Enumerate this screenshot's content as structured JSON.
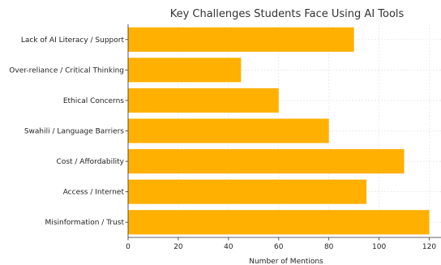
{
  "chart_data": {
    "type": "bar",
    "orientation": "horizontal",
    "title": "Key Challenges Students Face Using AI Tools",
    "xlabel": "Number of Mentions",
    "ylabel": "",
    "categories": [
      "Lack of AI Literacy / Support",
      "Over-reliance / Critical Thinking",
      "Ethical Concerns",
      "Swahili / Language Barriers",
      "Cost / Affordability",
      "Access / Internet",
      "Misinformation / Trust"
    ],
    "values": [
      90,
      45,
      60,
      80,
      110,
      95,
      120
    ],
    "xlim": [
      0,
      125
    ],
    "xticks": [
      "0",
      "20",
      "40",
      "60",
      "80",
      "100",
      "120"
    ],
    "grid": true,
    "bar_color": "#ffb000"
  }
}
